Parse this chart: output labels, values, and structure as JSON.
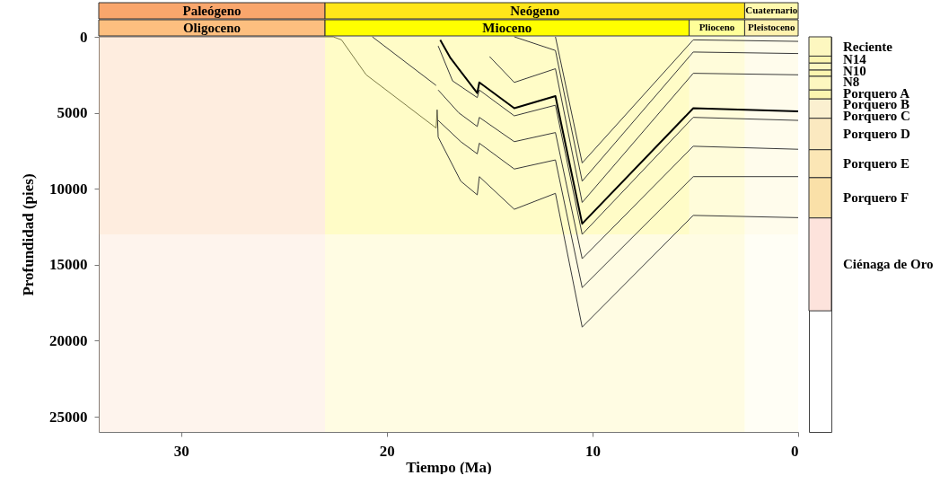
{
  "chart_data": [
    {
      "type": "line",
      "xlabel": "Tiempo (Ma)",
      "ylabel": "Profundidad (pies)",
      "xlim": [
        34,
        0
      ],
      "xticks": [
        30,
        20,
        10,
        0
      ],
      "ylim": [
        26000,
        0
      ],
      "yticks": [
        0,
        5000,
        10000,
        15000,
        20000,
        25000
      ],
      "grid": false,
      "bands": [
        {
          "axis": "x",
          "from": 34,
          "to": 23,
          "label": "Paleógeno",
          "color": "#f9a66c"
        },
        {
          "axis": "x",
          "from": 23,
          "to": 2.6,
          "label": "Neógeno",
          "color": "#ffe619"
        },
        {
          "axis": "x",
          "from": 2.6,
          "to": 0,
          "label": "Cuaternario",
          "color": "#fff9ae"
        },
        {
          "axis": "x",
          "from": 34,
          "to": 23,
          "label": "Oligoceno",
          "color": "#fdbf7f"
        },
        {
          "axis": "x",
          "from": 23,
          "to": 5.3,
          "label": "Mioceno",
          "color": "#ffff00"
        },
        {
          "axis": "x",
          "from": 5.3,
          "to": 2.6,
          "label": "Plioceno",
          "color": "#ffff99"
        },
        {
          "axis": "x",
          "from": 2.6,
          "to": 0,
          "label": "Pleistoceno",
          "color": "#fff2ae"
        }
      ],
      "series": [
        {
          "color": "#5a5a5a",
          "x": [
            34,
            22.6,
            22.2,
            21.0,
            17.6,
            17.55
          ],
          "values": [
            0,
            0,
            200,
            2500,
            6000,
            4800
          ]
        },
        {
          "color": "#3a3a3a",
          "x": [
            20.7,
            17.6
          ],
          "values": [
            0,
            3200
          ]
        },
        {
          "color": "#3a3a3a",
          "x": [
            17.55,
            17.5,
            16.4,
            15.6,
            15.5,
            13.8,
            11.8,
            10.5,
            5.1,
            0
          ],
          "values": [
            4800,
            6600,
            9500,
            10400,
            9200,
            11350,
            10300,
            19100,
            11750,
            11900
          ]
        },
        {
          "color": "#3a3a3a",
          "x": [
            17.5,
            16.4,
            15.6,
            15.5,
            13.8,
            11.8,
            10.5,
            5.1,
            0
          ],
          "values": [
            5500,
            6900,
            7700,
            7000,
            8700,
            8100,
            16500,
            9200,
            9200
          ]
        },
        {
          "color": "#3a3a3a",
          "x": [
            17.5,
            16.5,
            15.6,
            15.5,
            13.8,
            11.8,
            10.5,
            5.1,
            0
          ],
          "values": [
            3500,
            5000,
            5900,
            5300,
            6900,
            6300,
            14600,
            7200,
            7400
          ]
        },
        {
          "color": "#3a3a3a",
          "x": [
            17.5,
            16.8,
            15.6,
            15.5,
            13.8,
            11.8,
            10.5,
            5.1,
            0
          ],
          "values": [
            600,
            2900,
            4000,
            3500,
            5200,
            4500,
            13000,
            5300,
            5500
          ]
        },
        {
          "color": "#000000",
          "x": [
            17.4,
            16.9,
            15.6,
            15.5,
            13.8,
            11.8,
            10.5,
            5.1,
            0
          ],
          "values": [
            200,
            1400,
            3700,
            3000,
            4700,
            3900,
            12300,
            4700,
            4900
          ]
        },
        {
          "color": "#3a3a3a",
          "x": [
            15.0,
            13.8,
            11.8,
            10.5,
            5.1,
            0
          ],
          "values": [
            1300,
            3000,
            2100,
            10900,
            2400,
            2500
          ]
        },
        {
          "color": "#3a3a3a",
          "x": [
            13.8,
            11.8,
            10.5,
            5.1,
            0
          ],
          "values": [
            0,
            900,
            9500,
            1000,
            1100
          ]
        },
        {
          "color": "#3a3a3a",
          "x": [
            11.8,
            10.5,
            5.1,
            0
          ],
          "values": [
            0,
            8300,
            200,
            300
          ]
        }
      ]
    },
    {
      "type": "bar",
      "stacked": true,
      "categories": [
        null
      ],
      "ylim": [
        26000,
        0
      ],
      "tick_labels": false,
      "series": [
        {
          "name": "Reciente",
          "color": "#fdf7c0",
          "values": [
            1270
          ]
        },
        {
          "name": "N14",
          "color": "#fcf5b0",
          "values": [
            460
          ]
        },
        {
          "name": "N10",
          "color": "#fdf7c0",
          "values": [
            460
          ]
        },
        {
          "name": "N8",
          "color": "#fcf5b0",
          "values": [
            410
          ]
        },
        {
          "name": "Porquero A",
          "color": "#fdf7c0",
          "values": [
            900
          ]
        },
        {
          "name": "Porquero B",
          "color": "#fcf5b0",
          "values": [
            590
          ]
        },
        {
          "name": "Porquero C",
          "color": "#fbf0d0",
          "values": [
            1270
          ]
        },
        {
          "name": "Porquero D",
          "color": "#fbe9c0",
          "values": [
            2070
          ]
        },
        {
          "name": "Porquero E",
          "color": "#fbe6b5",
          "values": [
            1840
          ]
        },
        {
          "name": "Porquero F",
          "color": "#fae0a8",
          "values": [
            2650
          ]
        },
        {
          "name": "Ciénaga de Oro",
          "color": "#fde3dc",
          "values": [
            6110
          ]
        }
      ]
    }
  ]
}
